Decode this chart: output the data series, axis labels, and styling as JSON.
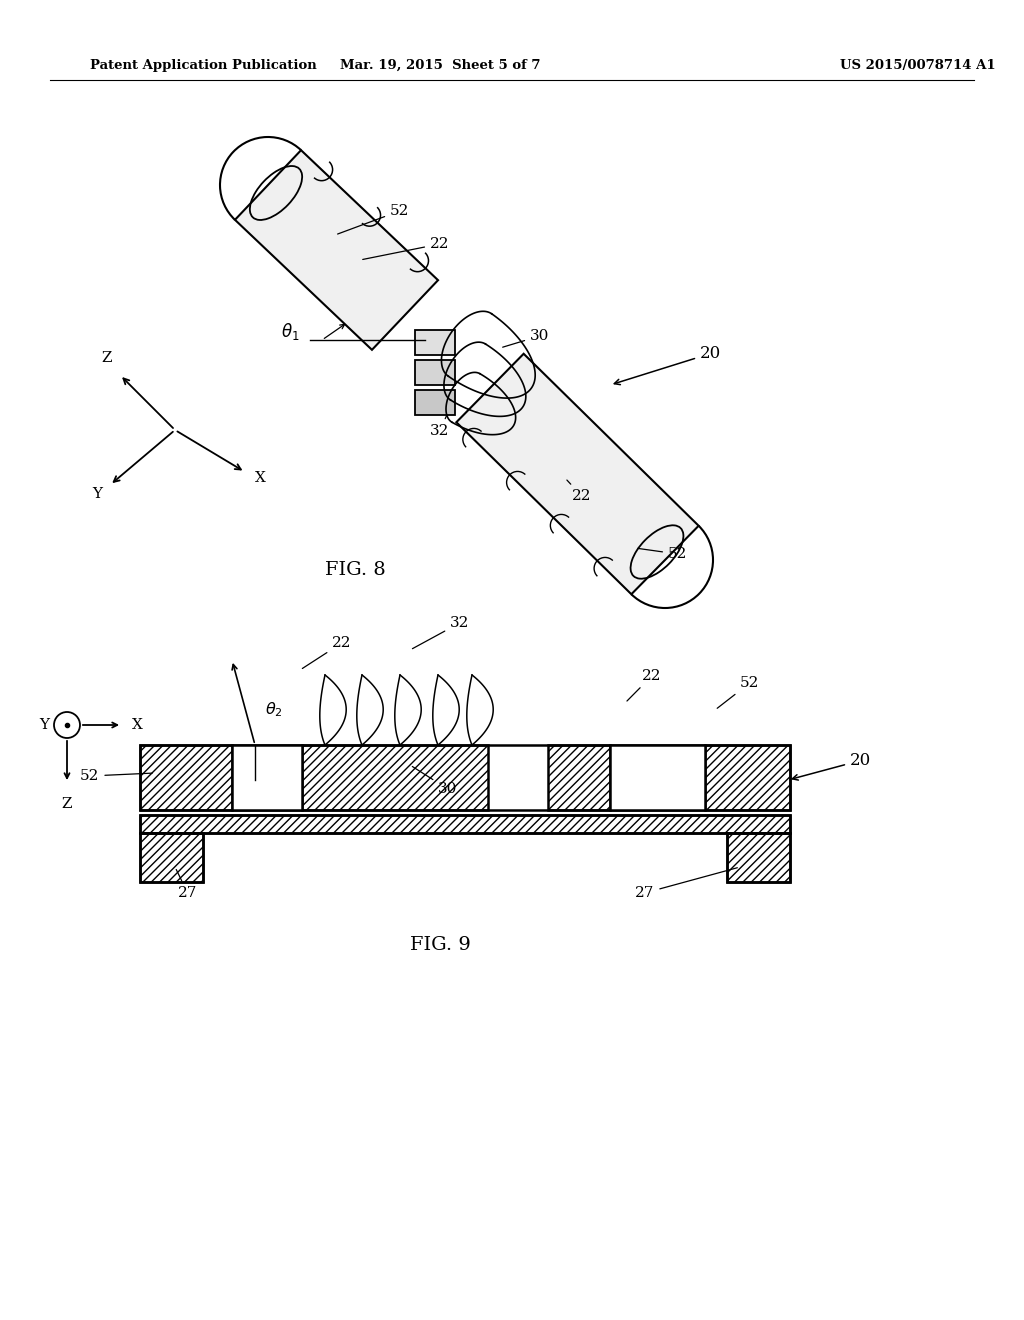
{
  "bg_color": "#ffffff",
  "header_left": "Patent Application Publication",
  "header_mid": "Mar. 19, 2015  Sheet 5 of 7",
  "header_right": "US 2015/0078714 A1",
  "fig8_label": "FIG. 8",
  "fig9_label": "FIG. 9",
  "text_color": "#000000",
  "line_color": "#000000"
}
